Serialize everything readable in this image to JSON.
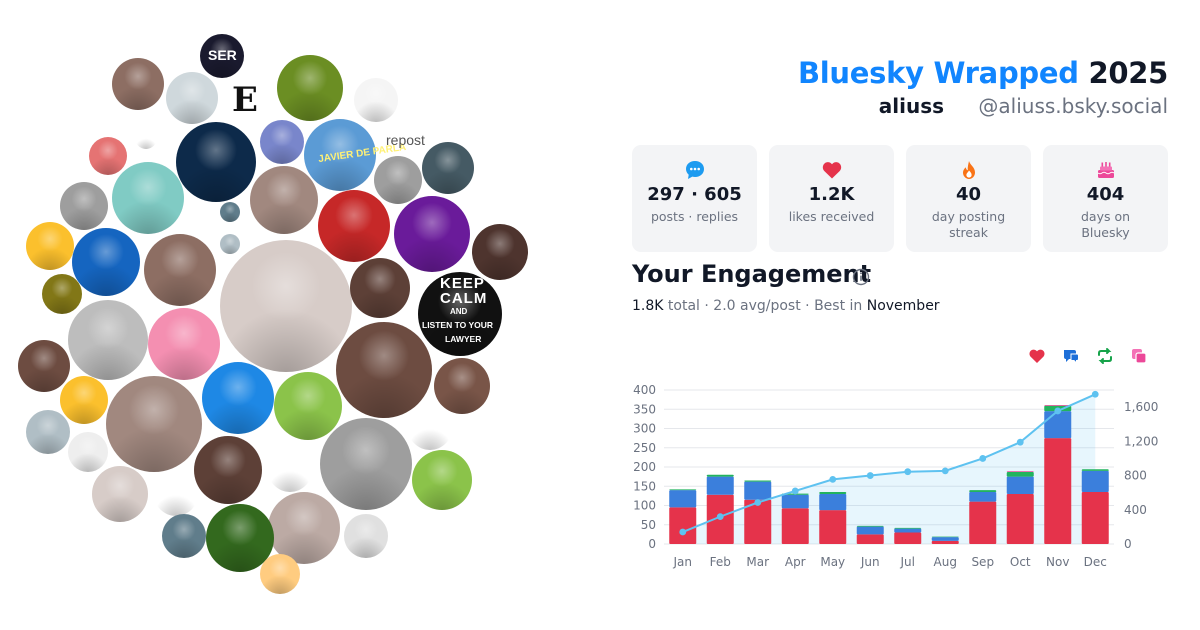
{
  "header": {
    "brand": "Bluesky Wrapped",
    "year": "2025",
    "display_name": "aliuss",
    "handle": "@aliuss.bsky.social"
  },
  "stats": [
    {
      "icon": "chat-bubble-icon",
      "value": "297 · 605",
      "label": "posts · replies",
      "color": "#1d9bf0"
    },
    {
      "icon": "heart-icon",
      "value": "1.2K",
      "label": "likes received",
      "color": "#e5334b"
    },
    {
      "icon": "flame-icon",
      "value": "40",
      "label": "day posting streak",
      "color": "#f97316"
    },
    {
      "icon": "cake-icon",
      "value": "404",
      "label": "days on Bluesky",
      "color": "#ec4899"
    }
  ],
  "engagement": {
    "title": "Your Engagement",
    "total": "1.8K",
    "total_label": "total",
    "avg": "2.0 avg/post",
    "best_label": "Best in",
    "best_month": "November",
    "legend": [
      {
        "icon": "heart-icon",
        "color": "#e5334b"
      },
      {
        "icon": "reply-icon",
        "color": "#1d6fd8"
      },
      {
        "icon": "repost-icon",
        "color": "#16a34a"
      },
      {
        "icon": "quote-icon",
        "color": "#ec4899"
      }
    ]
  },
  "cluster": {
    "logo_labels": [
      "SER",
      "E",
      "KEEP",
      "CALM",
      "AND",
      "LISTEN TO YOUR",
      "LAWYER",
      "JAVIER DE PARLA",
      "repost"
    ]
  },
  "chart_data": {
    "type": "bar",
    "categories": [
      "Jan",
      "Feb",
      "Mar",
      "Apr",
      "May",
      "Jun",
      "Jul",
      "Aug",
      "Sep",
      "Oct",
      "Nov",
      "Dec"
    ],
    "series": [
      {
        "values": [
          95,
          128,
          115,
          93,
          88,
          25,
          30,
          8,
          110,
          130,
          275,
          135
        ],
        "color": "#e5334b"
      },
      {
        "values": [
          45,
          47,
          47,
          35,
          42,
          20,
          10,
          10,
          25,
          45,
          70,
          55
        ],
        "color": "#3b7fdc"
      },
      {
        "values": [
          2,
          5,
          3,
          3,
          5,
          2,
          2,
          1,
          5,
          12,
          14,
          4
        ],
        "color": "#22b35e"
      },
      {
        "values": [
          0,
          0,
          0,
          0,
          0,
          0,
          0,
          0,
          0,
          2,
          2,
          0
        ],
        "color": "#ec4899"
      }
    ],
    "cumulative": [
      140,
      320,
      485,
      620,
      755,
      800,
      845,
      855,
      1000,
      1190,
      1555,
      1750
    ],
    "cumulative_color": "#5ec2f0",
    "ylim": [
      0,
      400
    ],
    "yticks": [
      0,
      50,
      100,
      150,
      200,
      250,
      300,
      350,
      400
    ],
    "y2lim": [
      0,
      1800
    ],
    "y2ticks": [
      "0",
      "400",
      "800",
      "1,200",
      "1,600"
    ],
    "grid": true
  }
}
